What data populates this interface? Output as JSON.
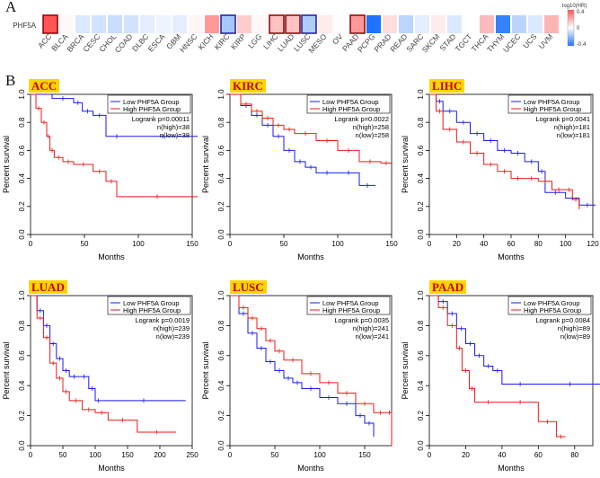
{
  "panel_a_label": "A",
  "panel_b_label": "B",
  "heatmap": {
    "row_label": "PHF5A",
    "legend_title": "log10(HR)",
    "legend_ticks": [
      "0.4",
      "0",
      "-0.4"
    ],
    "highlight_color": "#1c1c9a",
    "significant_color": "#8b0000",
    "cancers": [
      "ACC",
      "BLCA",
      "BRCA",
      "CESC",
      "CHOL",
      "COAD",
      "DLBC",
      "ESCA",
      "GBM",
      "HNSC",
      "KICH",
      "KIRC",
      "KIRP",
      "LGG",
      "LIHC",
      "LUAD",
      "LUSC",
      "MESO",
      "OV",
      "PAAD",
      "PCPG",
      "PRAD",
      "READ",
      "SARC",
      "SKCM",
      "STAD",
      "TGCT",
      "THCA",
      "THYM",
      "UCEC",
      "UCS",
      "UVM"
    ],
    "values": [
      0.5,
      0.02,
      -0.08,
      -0.1,
      -0.12,
      -0.1,
      -0.06,
      -0.04,
      -0.06,
      0.03,
      0.3,
      -0.2,
      0.15,
      0.02,
      0.18,
      0.18,
      -0.18,
      0.06,
      0.0,
      0.3,
      -0.5,
      0.1,
      -0.15,
      -0.06,
      0.06,
      -0.08,
      0.0,
      0.2,
      -0.45,
      -0.15,
      -0.08,
      0.22
    ],
    "significant": [
      "ACC",
      "KIRC",
      "LIHC",
      "LUAD",
      "LUSC",
      "PAAD"
    ]
  },
  "chart_data": [
    {
      "type": "line",
      "title": "ACC",
      "xlabel": "Months",
      "ylabel": "Percent survival",
      "xlim": [
        0,
        150
      ],
      "ylim": [
        0,
        1
      ],
      "xticks": [
        0,
        50,
        100,
        150
      ],
      "yticks": [
        0.0,
        0.2,
        0.4,
        0.6,
        0.8,
        1.0
      ],
      "legend": [
        "Low PHF5A Group",
        "High PHF5A Group"
      ],
      "stats": [
        "Logrank p=0.00011",
        "n(high)=38",
        "n(low)=38"
      ],
      "series": [
        {
          "name": "Low PHF5A Group",
          "color": "#1a1aee",
          "x": [
            0,
            20,
            40,
            48,
            58,
            70,
            90,
            155
          ],
          "y": [
            1.0,
            0.97,
            0.94,
            0.88,
            0.85,
            0.7,
            0.7,
            0.7
          ]
        },
        {
          "name": "High PHF5A Group",
          "color": "#ee1a1a",
          "x": [
            0,
            5,
            10,
            15,
            18,
            22,
            30,
            40,
            58,
            70,
            80,
            155
          ],
          "y": [
            1.0,
            0.9,
            0.8,
            0.7,
            0.6,
            0.55,
            0.52,
            0.5,
            0.45,
            0.38,
            0.27,
            0.27
          ]
        }
      ]
    },
    {
      "type": "line",
      "title": "KIRC",
      "xlabel": "Months",
      "ylabel": "Percent survival",
      "xlim": [
        0,
        150
      ],
      "ylim": [
        0,
        1
      ],
      "xticks": [
        0,
        50,
        100,
        150
      ],
      "yticks": [
        0.0,
        0.2,
        0.4,
        0.6,
        0.8,
        1.0
      ],
      "legend": [
        "Low PHF5A Group",
        "High PHF5A Group"
      ],
      "stats": [
        "Logrank p=0.0022",
        "n(high)=258",
        "n(low)=258"
      ],
      "series": [
        {
          "name": "Low PHF5A Group",
          "color": "#1a1aee",
          "x": [
            0,
            10,
            20,
            30,
            40,
            50,
            60,
            70,
            80,
            100,
            120,
            135
          ],
          "y": [
            1.0,
            0.92,
            0.85,
            0.78,
            0.7,
            0.6,
            0.52,
            0.48,
            0.44,
            0.44,
            0.35,
            0.35
          ]
        },
        {
          "name": "High PHF5A Group",
          "color": "#ee1a1a",
          "x": [
            0,
            10,
            20,
            30,
            40,
            50,
            60,
            80,
            100,
            120,
            140,
            150
          ],
          "y": [
            1.0,
            0.93,
            0.88,
            0.83,
            0.78,
            0.75,
            0.72,
            0.67,
            0.6,
            0.52,
            0.51,
            0.51
          ]
        }
      ]
    },
    {
      "type": "line",
      "title": "LIHC",
      "xlabel": "Months",
      "ylabel": "Percent survival",
      "xlim": [
        0,
        120
      ],
      "ylim": [
        0,
        1
      ],
      "xticks": [
        0,
        20,
        40,
        60,
        80,
        100,
        120
      ],
      "yticks": [
        0.0,
        0.2,
        0.4,
        0.6,
        0.8,
        1.0
      ],
      "legend": [
        "Low PHF5A Group",
        "High PHF5A Group"
      ],
      "stats": [
        "Logrank p=0.0041",
        "n(high)=181",
        "n(low)=181"
      ],
      "series": [
        {
          "name": "Low PHF5A Group",
          "color": "#1a1aee",
          "x": [
            0,
            5,
            10,
            20,
            30,
            40,
            50,
            60,
            70,
            80,
            85,
            100,
            110,
            122
          ],
          "y": [
            1.0,
            0.95,
            0.88,
            0.8,
            0.72,
            0.67,
            0.6,
            0.58,
            0.52,
            0.45,
            0.3,
            0.26,
            0.21,
            0.21
          ]
        },
        {
          "name": "High PHF5A Group",
          "color": "#ee1a1a",
          "x": [
            0,
            5,
            10,
            20,
            30,
            40,
            50,
            60,
            70,
            80,
            90,
            100,
            105,
            110
          ],
          "y": [
            1.0,
            0.88,
            0.75,
            0.66,
            0.58,
            0.5,
            0.45,
            0.4,
            0.4,
            0.38,
            0.32,
            0.32,
            0.25,
            0.18
          ]
        }
      ]
    },
    {
      "type": "line",
      "title": "LUAD",
      "xlabel": "Months",
      "ylabel": "Percent survival",
      "xlim": [
        0,
        250
      ],
      "ylim": [
        0,
        1
      ],
      "xticks": [
        0,
        50,
        100,
        150,
        200,
        250
      ],
      "yticks": [
        0.0,
        0.2,
        0.4,
        0.6,
        0.8,
        1.0
      ],
      "legend": [
        "Low PHF5A Group",
        "High PHF5A Group"
      ],
      "stats": [
        "Logrank p=0.0019",
        "n(high)=239",
        "n(low)=239"
      ],
      "series": [
        {
          "name": "Low PHF5A Group",
          "color": "#1a1aee",
          "x": [
            0,
            10,
            20,
            30,
            40,
            50,
            60,
            75,
            90,
            100,
            110,
            240
          ],
          "y": [
            1.0,
            0.9,
            0.8,
            0.68,
            0.58,
            0.5,
            0.46,
            0.46,
            0.38,
            0.3,
            0.3,
            0.3
          ]
        },
        {
          "name": "High PHF5A Group",
          "color": "#ee1a1a",
          "x": [
            0,
            10,
            20,
            30,
            40,
            50,
            60,
            80,
            100,
            120,
            165,
            225
          ],
          "y": [
            1.0,
            0.85,
            0.72,
            0.55,
            0.45,
            0.36,
            0.3,
            0.24,
            0.22,
            0.17,
            0.09,
            0.09
          ]
        }
      ]
    },
    {
      "type": "line",
      "title": "LUSC",
      "xlabel": "Months",
      "ylabel": "Percent survival",
      "xlim": [
        0,
        180
      ],
      "ylim": [
        0,
        1
      ],
      "xticks": [
        0,
        50,
        100,
        150
      ],
      "yticks": [
        0.0,
        0.2,
        0.4,
        0.6,
        0.8,
        1.0
      ],
      "legend": [
        "Low PHF5A Group",
        "High PHF5A Group"
      ],
      "stats": [
        "Logrank p=0.0035",
        "n(high)=241",
        "n(low)=241"
      ],
      "series": [
        {
          "name": "Low PHF5A Group",
          "color": "#1a1aee",
          "x": [
            0,
            10,
            20,
            30,
            40,
            50,
            60,
            70,
            80,
            100,
            120,
            140,
            150,
            160
          ],
          "y": [
            1.0,
            0.88,
            0.75,
            0.65,
            0.56,
            0.5,
            0.45,
            0.42,
            0.38,
            0.32,
            0.28,
            0.2,
            0.15,
            0.06
          ]
        },
        {
          "name": "High PHF5A Group",
          "color": "#ee1a1a",
          "x": [
            0,
            10,
            20,
            30,
            40,
            50,
            60,
            80,
            100,
            120,
            140,
            160,
            175,
            180
          ],
          "y": [
            1.0,
            0.92,
            0.85,
            0.78,
            0.7,
            0.63,
            0.57,
            0.48,
            0.42,
            0.35,
            0.28,
            0.22,
            0.22,
            0.0
          ]
        }
      ]
    },
    {
      "type": "line",
      "title": "PAAD",
      "xlabel": "Months",
      "ylabel": "Percent survival",
      "xlim": [
        0,
        90
      ],
      "ylim": [
        0,
        1
      ],
      "xticks": [
        0,
        20,
        40,
        60,
        80
      ],
      "yticks": [
        0.0,
        0.2,
        0.4,
        0.6,
        0.8,
        1.0
      ],
      "legend": [
        "Low PHF5A Group",
        "High PHF5A Group"
      ],
      "stats": [
        "Logrank p=0.0084",
        "n(high)=89",
        "n(low)=89"
      ],
      "series": [
        {
          "name": "Low PHF5A Group",
          "color": "#1a1aee",
          "x": [
            0,
            5,
            10,
            15,
            20,
            25,
            30,
            35,
            40,
            60,
            95
          ],
          "y": [
            1.0,
            0.96,
            0.88,
            0.78,
            0.68,
            0.6,
            0.53,
            0.5,
            0.41,
            0.41,
            0.41
          ]
        },
        {
          "name": "High PHF5A Group",
          "color": "#ee1a1a",
          "x": [
            0,
            5,
            10,
            15,
            18,
            22,
            25,
            40,
            60,
            70,
            75
          ],
          "y": [
            1.0,
            0.92,
            0.8,
            0.65,
            0.5,
            0.38,
            0.29,
            0.29,
            0.16,
            0.06,
            0.06
          ]
        }
      ]
    }
  ]
}
